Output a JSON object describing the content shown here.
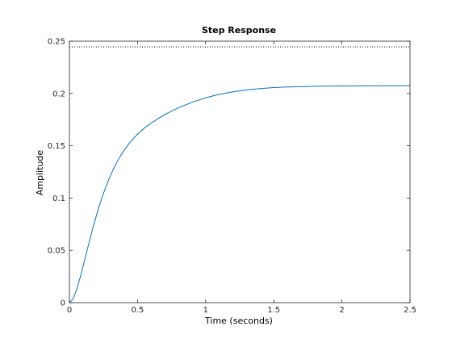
{
  "chart_data": {
    "type": "line",
    "title": "Step Response",
    "xlabel": "Time (seconds)",
    "ylabel": "Amplitude",
    "xlim": [
      0,
      2.5
    ],
    "ylim": [
      0,
      0.25
    ],
    "x_ticks": [
      0,
      0.5,
      1,
      1.5,
      2,
      2.5
    ],
    "x_tick_labels": [
      "0",
      "0.5",
      "1",
      "1.5",
      "2",
      "2.5"
    ],
    "y_ticks": [
      0,
      0.05,
      0.1,
      0.15,
      0.2,
      0.25
    ],
    "y_tick_labels": [
      "0",
      "0.05",
      "0.1",
      "0.15",
      "0.2",
      "0.25"
    ],
    "grid": false,
    "legend": "none",
    "series": [
      {
        "color": "#0072bd",
        "x": [
          0,
          0.025,
          0.05,
          0.075,
          0.1,
          0.125,
          0.15,
          0.175,
          0.2,
          0.225,
          0.25,
          0.275,
          0.3,
          0.325,
          0.35,
          0.375,
          0.4,
          0.45,
          0.5,
          0.55,
          0.6,
          0.65,
          0.7,
          0.75,
          0.8,
          0.9,
          1.0,
          1.1,
          1.2,
          1.3,
          1.4,
          1.5,
          1.6,
          1.8,
          2.0,
          2.2,
          2.5
        ],
        "y": [
          0,
          0.0032,
          0.0113,
          0.0223,
          0.0347,
          0.0476,
          0.0604,
          0.0727,
          0.0842,
          0.0948,
          0.1045,
          0.1132,
          0.1212,
          0.1283,
          0.1347,
          0.1404,
          0.1455,
          0.1542,
          0.1611,
          0.1669,
          0.1717,
          0.1759,
          0.1797,
          0.1832,
          0.1863,
          0.1916,
          0.1959,
          0.1992,
          0.2016,
          0.2034,
          0.2047,
          0.2056,
          0.2062,
          0.2069,
          0.2072,
          0.2073,
          0.2074
        ]
      }
    ],
    "steady_state": {
      "value": 0.2445,
      "style": "dotted",
      "color": "#000000"
    }
  }
}
